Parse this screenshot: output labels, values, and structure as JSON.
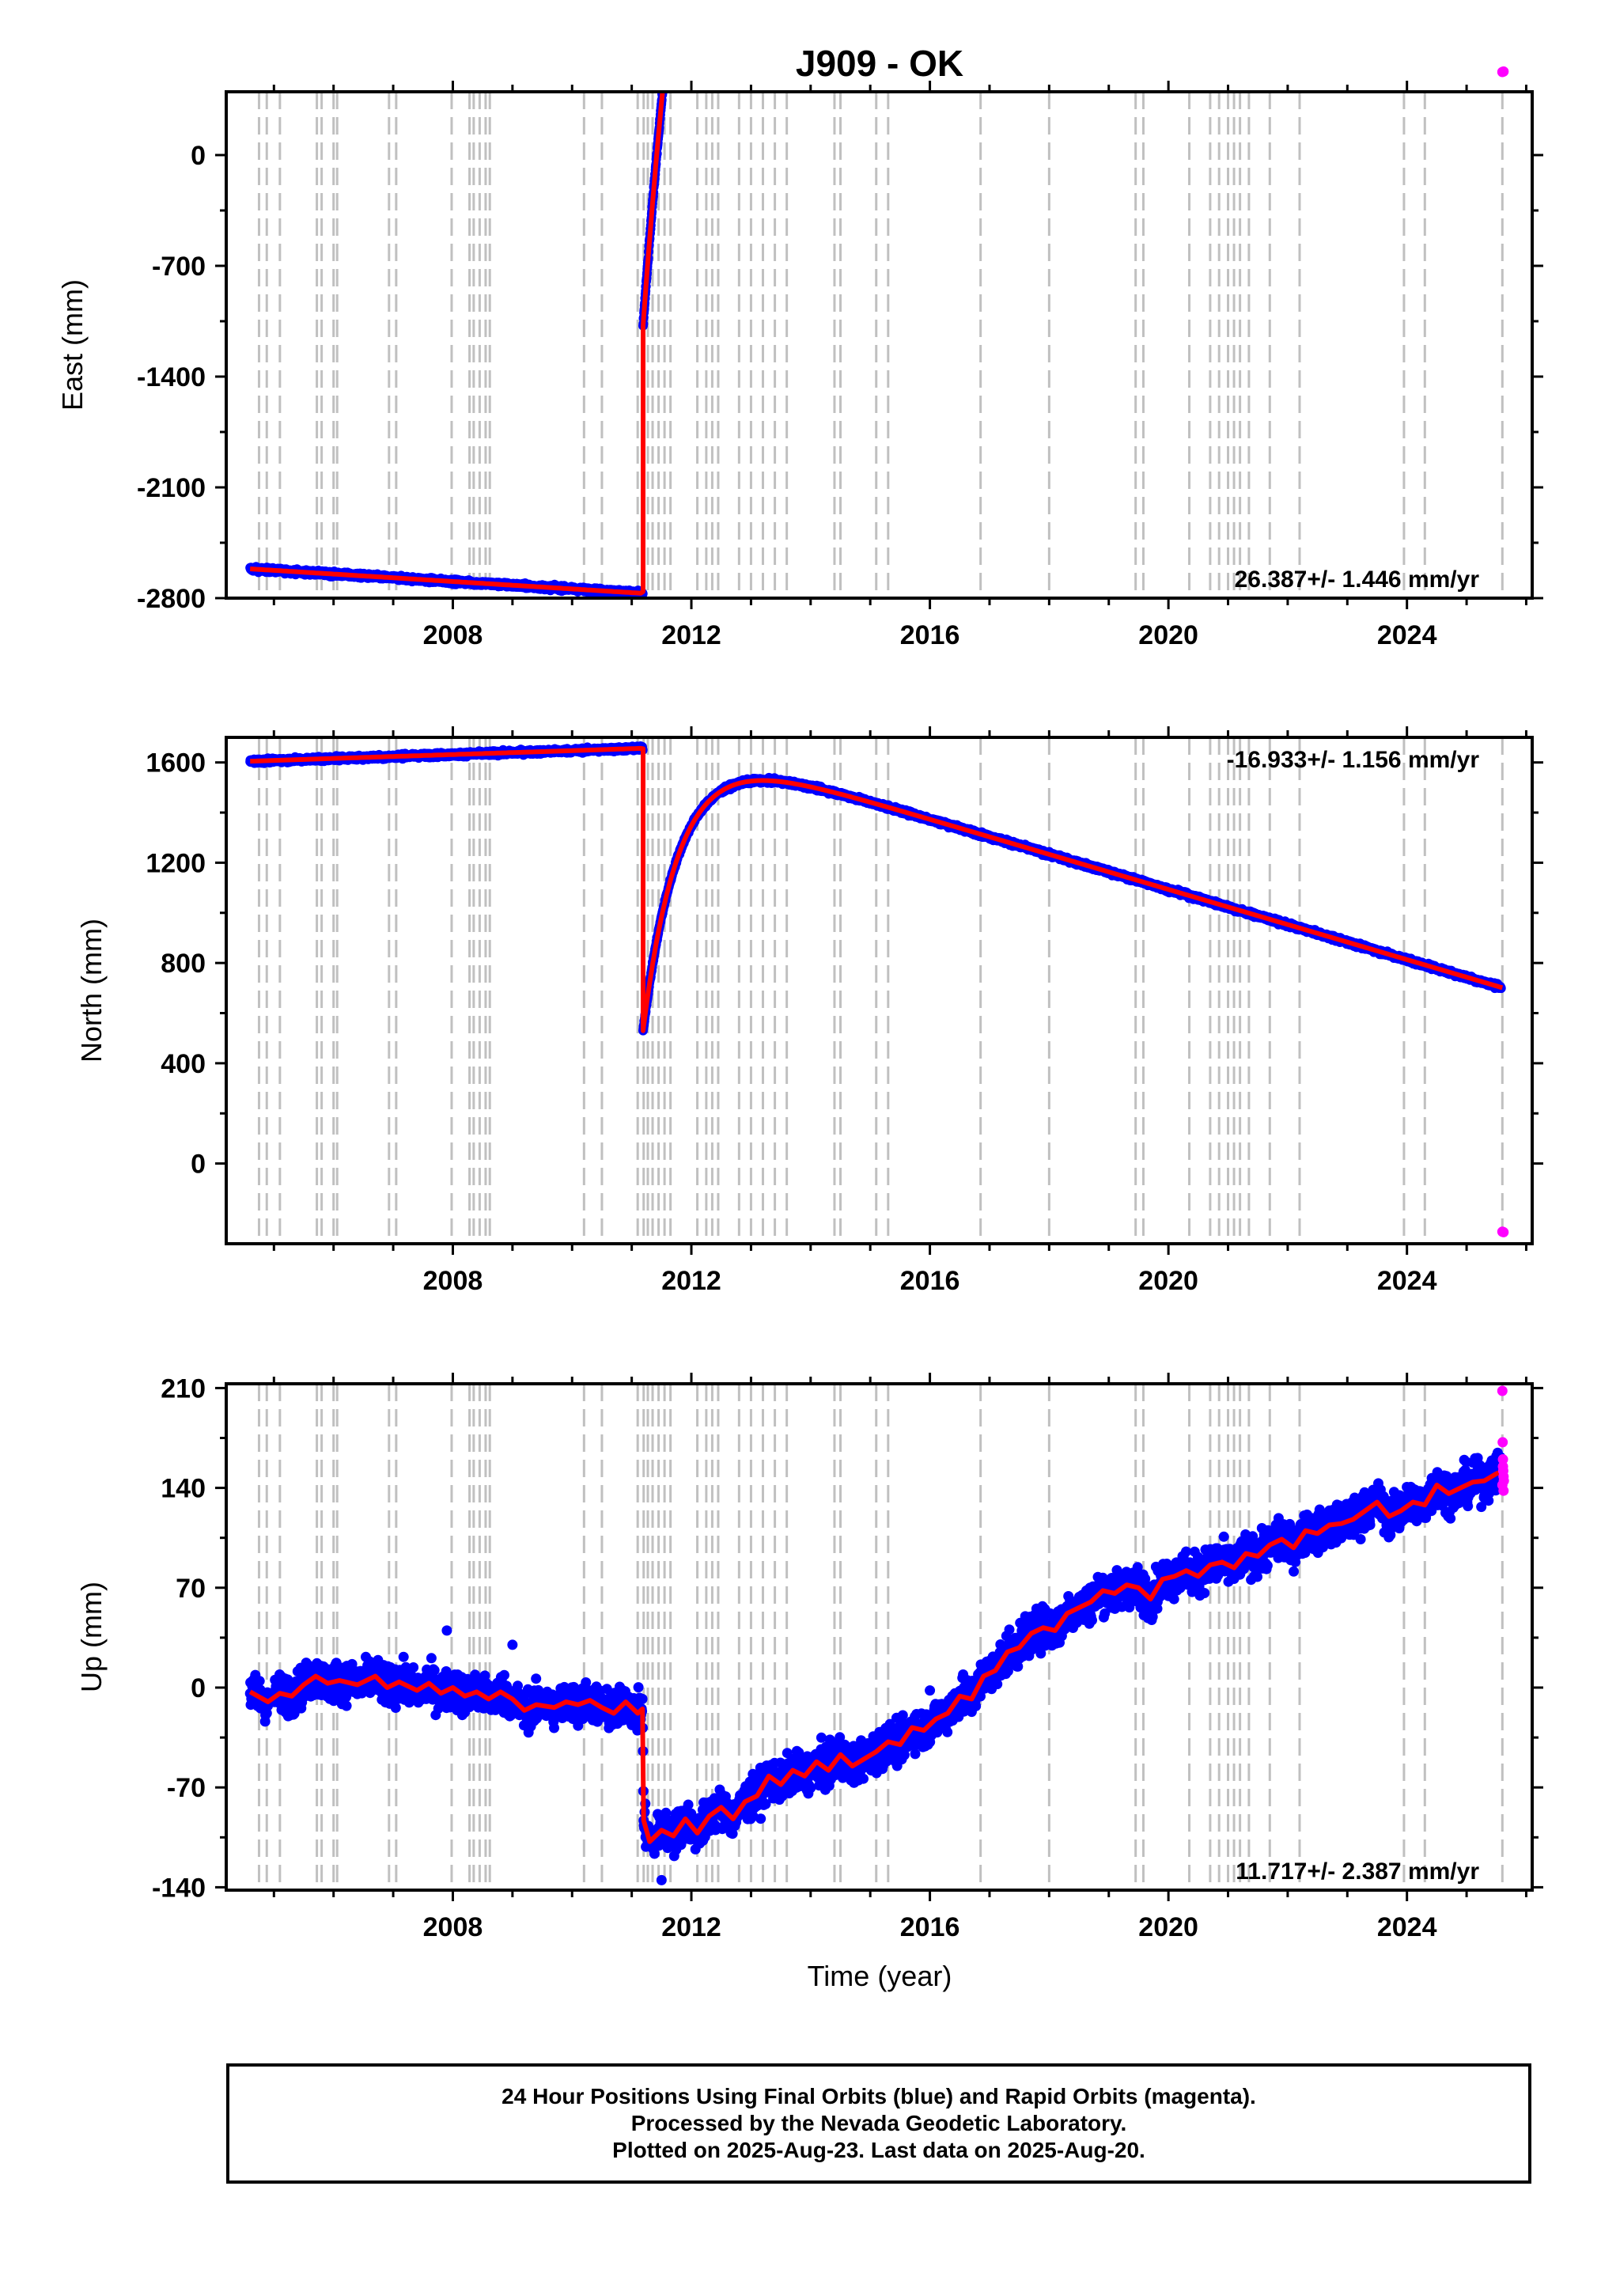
{
  "chart_data": {
    "type": "scatter",
    "title": "J909 - OK",
    "xlabel": "Time (year)",
    "xlim": [
      2004.2,
      2026.1
    ],
    "xticks": [
      "2008",
      "2012",
      "2016",
      "2020",
      "2024"
    ],
    "colors": {
      "final": "#0000ff",
      "rapid": "#ff00ff",
      "trend": "#ff0000",
      "events": "#c0c0c0"
    },
    "event_lines": [
      2004.75,
      2004.88,
      2005.1,
      2005.72,
      2005.8,
      2006.0,
      2006.06,
      2006.93,
      2007.05,
      2007.98,
      2008.28,
      2008.35,
      2008.45,
      2008.55,
      2008.62,
      2010.2,
      2010.5,
      2011.1,
      2011.2,
      2011.27,
      2011.35,
      2011.45,
      2011.55,
      2011.65,
      2012.1,
      2012.25,
      2012.35,
      2012.45,
      2012.8,
      2013.0,
      2013.2,
      2013.4,
      2013.6,
      2014.4,
      2014.5,
      2015.1,
      2015.3,
      2016.85,
      2018.0,
      2019.45,
      2019.58,
      2020.35,
      2020.7,
      2020.85,
      2021.0,
      2021.1,
      2021.2,
      2021.35,
      2021.7,
      2022.2,
      2023.95,
      2024.3,
      2025.6
    ],
    "panels": [
      {
        "ylabel": "East (mm)",
        "ylim": [
          -2800,
          400
        ],
        "yticks": [
          "0",
          "-700",
          "-1400",
          "-2100",
          "-2800"
        ],
        "ytick_values": [
          0,
          -700,
          -1400,
          -2100,
          -2800
        ],
        "rate": "26.387+/- 1.446 mm/yr",
        "rate_position": "bottom-right",
        "offset": {
          "t": 2011.19,
          "before": -2759,
          "after": -1080
        },
        "pre": {
          "start": 2004.6,
          "y0": -2615,
          "slope": -23.5
        },
        "post": {
          "a": 1525,
          "b": 2780,
          "tau": 0.75,
          "slope": 39.5,
          "end": 2025.62
        },
        "series": [
          {
            "name": "Final Orbits",
            "color": "#0000ff",
            "noise": 10
          },
          {
            "name": "Trend",
            "color": "#ff0000"
          },
          {
            "name": "Rapid Orbits",
            "color": "#ff00ff",
            "t": [
              2025.6,
              2025.62
            ],
            "y": [
              525,
              528
            ]
          }
        ]
      },
      {
        "ylabel": "North (mm)",
        "ylim": [
          -320,
          1700
        ],
        "yticks": [
          "1600",
          "1200",
          "800",
          "400",
          "0"
        ],
        "ytick_values": [
          1600,
          1200,
          800,
          400,
          0
        ],
        "rate": "-16.933+/- 1.156 mm/yr",
        "rate_position": "top-right",
        "offset": {
          "t": 2011.19,
          "before": 1655,
          "after": 530
        },
        "pre": {
          "start": 2004.6,
          "y0": 1605,
          "slope": 7.8
        },
        "post": {
          "a": -70,
          "b": 1180,
          "tau": 0.6,
          "slope": -20.6,
          "end": 2025.62
        },
        "series": [
          {
            "name": "Final Orbits",
            "color": "#0000ff",
            "noise": 6
          },
          {
            "name": "Trend",
            "color": "#ff0000"
          },
          {
            "name": "Rapid Orbits",
            "color": "#ff00ff",
            "t": [
              2025.6,
              2025.62
            ],
            "y": [
              -272,
              -274
            ]
          }
        ]
      },
      {
        "ylabel": "Up (mm)",
        "ylim": [
          -142,
          213
        ],
        "yticks": [
          "210",
          "140",
          "70",
          "0",
          "-70",
          "-140"
        ],
        "ytick_values": [
          210,
          140,
          70,
          0,
          -70,
          -140
        ],
        "rate": "11.717+/- 2.387 mm/yr",
        "rate_position": "bottom-right",
        "trend_points": [
          [
            2004.6,
            -3
          ],
          [
            2004.9,
            -10
          ],
          [
            2005.1,
            -4
          ],
          [
            2005.3,
            -6
          ],
          [
            2005.5,
            2
          ],
          [
            2005.7,
            8
          ],
          [
            2005.9,
            3
          ],
          [
            2006.1,
            5
          ],
          [
            2006.4,
            2
          ],
          [
            2006.7,
            8
          ],
          [
            2006.9,
            0
          ],
          [
            2007.1,
            4
          ],
          [
            2007.4,
            -2
          ],
          [
            2007.6,
            3
          ],
          [
            2007.8,
            -4
          ],
          [
            2008.0,
            0
          ],
          [
            2008.2,
            -6
          ],
          [
            2008.4,
            -3
          ],
          [
            2008.6,
            -8
          ],
          [
            2008.8,
            -3
          ],
          [
            2009.0,
            -8
          ],
          [
            2009.2,
            -16
          ],
          [
            2009.4,
            -12
          ],
          [
            2009.7,
            -14
          ],
          [
            2009.9,
            -10
          ],
          [
            2010.1,
            -12
          ],
          [
            2010.3,
            -9
          ],
          [
            2010.5,
            -14
          ],
          [
            2010.7,
            -18
          ],
          [
            2010.9,
            -10
          ],
          [
            2011.1,
            -18
          ],
          [
            2011.18,
            -15
          ],
          [
            2011.2,
            -93
          ],
          [
            2011.3,
            -108
          ],
          [
            2011.5,
            -100
          ],
          [
            2011.7,
            -104
          ],
          [
            2011.9,
            -92
          ],
          [
            2012.1,
            -102
          ],
          [
            2012.3,
            -90
          ],
          [
            2012.5,
            -84
          ],
          [
            2012.7,
            -92
          ],
          [
            2012.9,
            -80
          ],
          [
            2013.1,
            -76
          ],
          [
            2013.3,
            -62
          ],
          [
            2013.5,
            -68
          ],
          [
            2013.7,
            -58
          ],
          [
            2013.9,
            -62
          ],
          [
            2014.1,
            -52
          ],
          [
            2014.3,
            -58
          ],
          [
            2014.5,
            -47
          ],
          [
            2014.7,
            -55
          ],
          [
            2014.9,
            -50
          ],
          [
            2015.1,
            -45
          ],
          [
            2015.3,
            -38
          ],
          [
            2015.5,
            -40
          ],
          [
            2015.7,
            -28
          ],
          [
            2015.9,
            -30
          ],
          [
            2016.1,
            -22
          ],
          [
            2016.3,
            -18
          ],
          [
            2016.5,
            -6
          ],
          [
            2016.7,
            -8
          ],
          [
            2016.9,
            8
          ],
          [
            2017.1,
            12
          ],
          [
            2017.3,
            25
          ],
          [
            2017.5,
            28
          ],
          [
            2017.7,
            38
          ],
          [
            2017.9,
            42
          ],
          [
            2018.1,
            40
          ],
          [
            2018.3,
            52
          ],
          [
            2018.5,
            56
          ],
          [
            2018.7,
            60
          ],
          [
            2018.9,
            68
          ],
          [
            2019.1,
            66
          ],
          [
            2019.3,
            72
          ],
          [
            2019.5,
            70
          ],
          [
            2019.7,
            62
          ],
          [
            2019.9,
            76
          ],
          [
            2020.1,
            78
          ],
          [
            2020.3,
            82
          ],
          [
            2020.5,
            78
          ],
          [
            2020.7,
            86
          ],
          [
            2020.9,
            88
          ],
          [
            2021.1,
            84
          ],
          [
            2021.3,
            94
          ],
          [
            2021.5,
            92
          ],
          [
            2021.7,
            100
          ],
          [
            2021.9,
            104
          ],
          [
            2022.1,
            98
          ],
          [
            2022.3,
            110
          ],
          [
            2022.5,
            108
          ],
          [
            2022.7,
            114
          ],
          [
            2022.9,
            115
          ],
          [
            2023.1,
            118
          ],
          [
            2023.3,
            124
          ],
          [
            2023.5,
            130
          ],
          [
            2023.7,
            120
          ],
          [
            2023.9,
            124
          ],
          [
            2024.1,
            130
          ],
          [
            2024.3,
            128
          ],
          [
            2024.5,
            142
          ],
          [
            2024.7,
            136
          ],
          [
            2024.9,
            140
          ],
          [
            2025.1,
            144
          ],
          [
            2025.3,
            145
          ],
          [
            2025.5,
            150
          ],
          [
            2025.62,
            152
          ]
        ],
        "series": [
          {
            "name": "Final Orbits",
            "color": "#0000ff",
            "noise": 9.5,
            "last": 2025.58
          },
          {
            "name": "Trend",
            "color": "#ff0000"
          },
          {
            "name": "Rapid Orbits",
            "color": "#ff00ff",
            "t": [
              2025.6,
              2025.605,
              2025.61,
              2025.615,
              2025.62,
              2025.625,
              2025.6,
              2025.62,
              2025.61
            ],
            "y": [
              208,
              172,
              160,
              152,
              148,
              145,
              142,
              138,
              155
            ]
          }
        ]
      }
    ]
  },
  "footer": {
    "line1": "24 Hour Positions Using Final Orbits (blue) and Rapid Orbits (magenta).",
    "line2": "Processed by the Nevada Geodetic Laboratory.",
    "line3": "Plotted on 2025-Aug-23. Last data on 2025-Aug-20."
  }
}
